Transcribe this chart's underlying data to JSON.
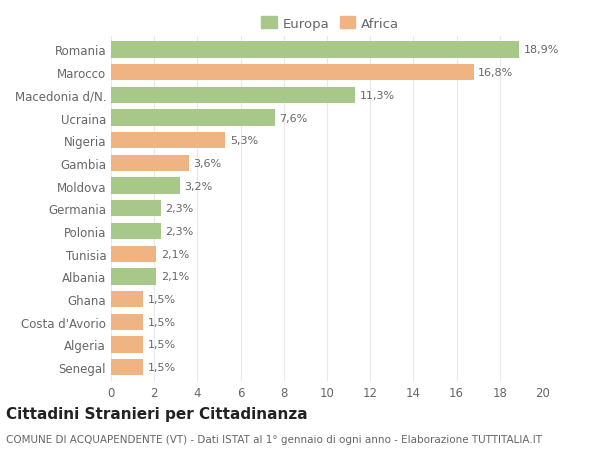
{
  "categories": [
    "Senegal",
    "Algeria",
    "Costa d'Avorio",
    "Ghana",
    "Albania",
    "Tunisia",
    "Polonia",
    "Germania",
    "Moldova",
    "Gambia",
    "Nigeria",
    "Ucraina",
    "Macedonia d/N.",
    "Marocco",
    "Romania"
  ],
  "values": [
    1.5,
    1.5,
    1.5,
    1.5,
    2.1,
    2.1,
    2.3,
    2.3,
    3.2,
    3.6,
    5.3,
    7.6,
    11.3,
    16.8,
    18.9
  ],
  "continents": [
    "Africa",
    "Africa",
    "Africa",
    "Africa",
    "Europa",
    "Africa",
    "Europa",
    "Europa",
    "Europa",
    "Africa",
    "Africa",
    "Europa",
    "Europa",
    "Africa",
    "Europa"
  ],
  "labels": [
    "1,5%",
    "1,5%",
    "1,5%",
    "1,5%",
    "2,1%",
    "2,1%",
    "2,3%",
    "2,3%",
    "3,2%",
    "3,6%",
    "5,3%",
    "7,6%",
    "11,3%",
    "16,8%",
    "18,9%"
  ],
  "europa_color": "#a8c88a",
  "africa_color": "#f0b482",
  "background_color": "#ffffff",
  "grid_color": "#e8e8e8",
  "title": "Cittadini Stranieri per Cittadinanza",
  "subtitle": "COMUNE DI ACQUAPENDENTE (VT) - Dati ISTAT al 1° gennaio di ogni anno - Elaborazione TUTTITALIA.IT",
  "xlim": [
    0,
    20
  ],
  "xticks": [
    0,
    2,
    4,
    6,
    8,
    10,
    12,
    14,
    16,
    18,
    20
  ],
  "label_fontsize": 8,
  "tick_fontsize": 8.5,
  "title_fontsize": 11,
  "subtitle_fontsize": 7.5,
  "legend_fontsize": 9.5
}
